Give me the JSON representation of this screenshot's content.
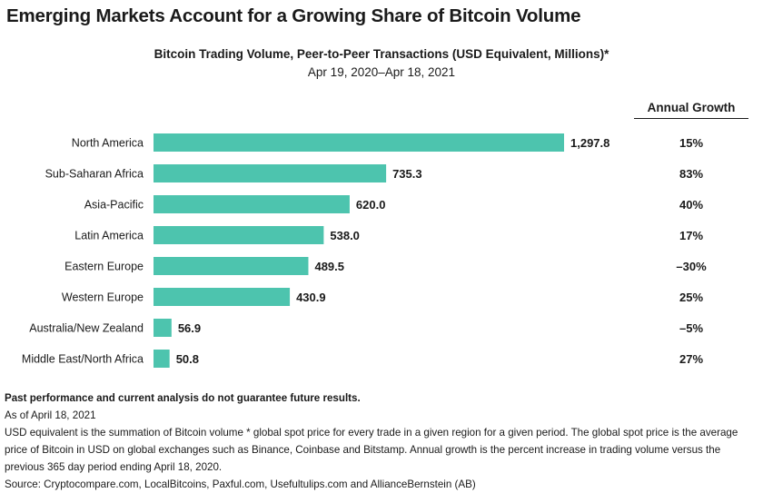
{
  "title": "Emerging Markets Account for a Growing Share of Bitcoin Volume",
  "growth_header": "Annual Growth",
  "colors": {
    "bar": "#4dc4ae",
    "text": "#1a1a1a"
  },
  "chart_data": {
    "type": "bar",
    "orientation": "horizontal",
    "title": "Bitcoin Trading Volume, Peer-to-Peer Transactions (USD Equivalent, Millions)*",
    "subtitle": "Apr 19, 2020–Apr 18, 2021",
    "categories": [
      "North America",
      "Sub-Saharan Africa",
      "Asia-Pacific",
      "Latin America",
      "Eastern Europe",
      "Western Europe",
      "Australia/New Zealand",
      "Middle East/North Africa"
    ],
    "values": [
      1297.8,
      735.3,
      620.0,
      538.0,
      489.5,
      430.9,
      56.9,
      50.8
    ],
    "value_labels": [
      "1,297.8",
      "735.3",
      "620.0",
      "538.0",
      "489.5",
      "430.9",
      "56.9",
      "50.8"
    ],
    "annual_growth": [
      "15%",
      "83%",
      "40%",
      "17%",
      "–30%",
      "25%",
      "–5%",
      "27%"
    ],
    "xlim": [
      0,
      1297.8
    ],
    "grid": false,
    "legend": "none"
  },
  "footnotes": {
    "disclaimer": "Past performance and current analysis do not guarantee future results.",
    "as_of": "As of April 18, 2021",
    "definition": "USD equivalent is the summation of Bitcoin volume * global spot price for every trade in a given region for a given period. The global spot price is the average price of Bitcoin in USD on global exchanges such as Binance, Coinbase and Bitstamp. Annual growth is the percent increase in trading volume versus the previous 365 day period ending April 18, 2020.",
    "source": "Source: Cryptocompare.com, LocalBitcoins, Paxful.com, Usefultulips.com and AllianceBernstein (AB)"
  }
}
